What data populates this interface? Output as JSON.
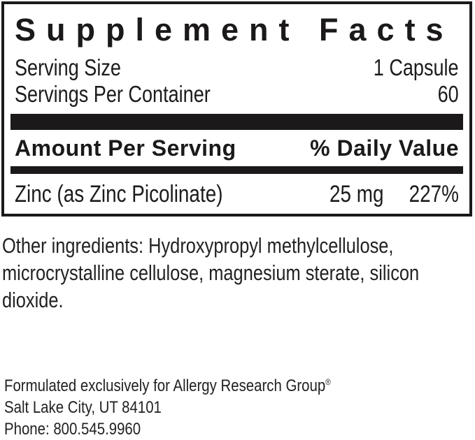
{
  "panel": {
    "title": "Supplement Facts",
    "serving_size_label": "Serving Size",
    "serving_size_value": "1 Capsule",
    "servings_per_container_label": "Servings Per Container",
    "servings_per_container_value": "60",
    "amount_per_serving_label": "Amount Per Serving",
    "daily_value_label": "% Daily Value",
    "nutrients": [
      {
        "name": "Zinc (as Zinc Picolinate)",
        "amount": "25 mg",
        "daily_value": "227%"
      }
    ]
  },
  "other_ingredients": {
    "lines": [
      "Other ingredients: Hydroxypropyl methylcellulose,",
      "microcrystalline cellulose, magnesium sterate, silicon",
      "dioxide."
    ]
  },
  "footer": {
    "formulated_text": "Formulated exclusively for Allergy Research Group",
    "registered_mark": "®",
    "address": "Salt Lake City, UT 84101",
    "phone": "Phone: 800.545.9960"
  },
  "colors": {
    "ink": "#1b191a",
    "background": "#ffffff"
  }
}
